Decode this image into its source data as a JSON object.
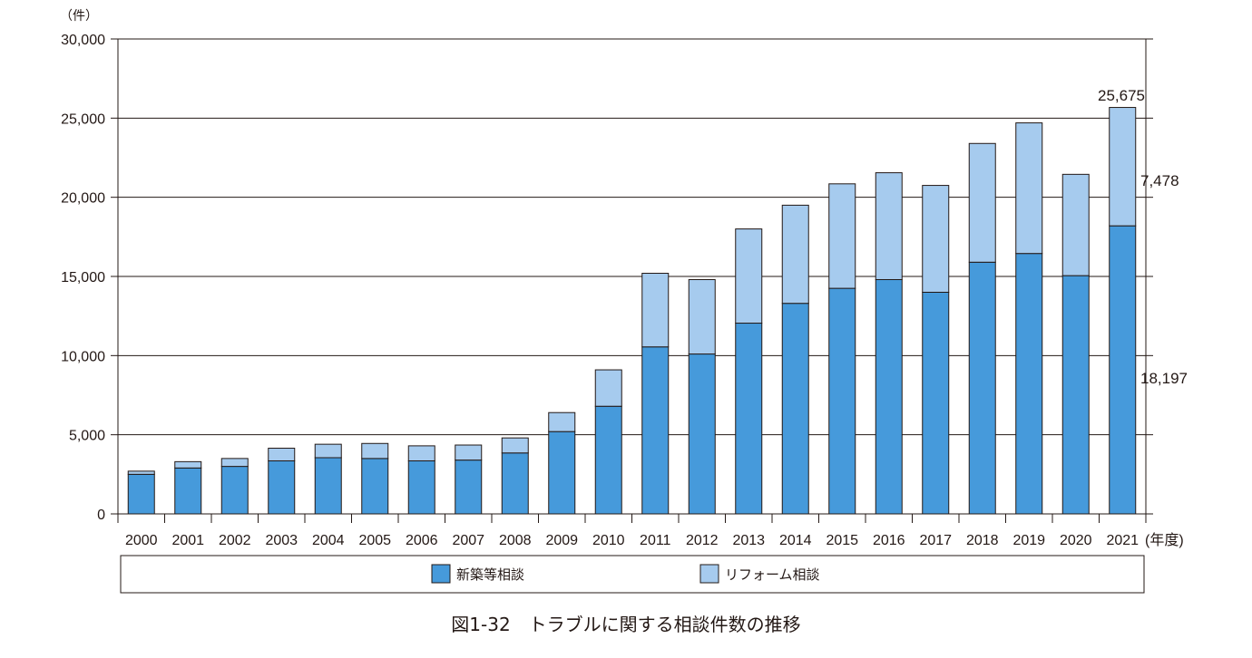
{
  "chart_data": {
    "type": "bar",
    "stacked": true,
    "title": "図1-32　トラブルに関する相談件数の推移",
    "y_unit": "（件）",
    "x_unit": "(年度)",
    "categories": [
      "2000",
      "2001",
      "2002",
      "2003",
      "2004",
      "2005",
      "2006",
      "2007",
      "2008",
      "2009",
      "2010",
      "2011",
      "2012",
      "2013",
      "2014",
      "2015",
      "2016",
      "2017",
      "2018",
      "2019",
      "2020",
      "2021"
    ],
    "series": [
      {
        "name": "新築等相談",
        "color": "#469ADB",
        "values": [
          2500,
          2900,
          3000,
          3350,
          3550,
          3500,
          3350,
          3400,
          3850,
          5200,
          6800,
          10550,
          10100,
          12050,
          13300,
          14250,
          14800,
          14000,
          15900,
          16450,
          15050,
          18197
        ]
      },
      {
        "name": "リフォーム相談",
        "color": "#A6CBEE",
        "values": [
          200,
          400,
          500,
          800,
          850,
          950,
          950,
          950,
          950,
          1200,
          2300,
          4650,
          4700,
          5950,
          6200,
          6600,
          6750,
          6750,
          7500,
          8250,
          6400,
          7478
        ]
      }
    ],
    "yticks": [
      0,
      5000,
      10000,
      15000,
      20000,
      25000,
      30000
    ],
    "ytick_labels": [
      "0",
      "5,000",
      "10,000",
      "15,000",
      "20,000",
      "25,000",
      "30,000"
    ],
    "ylim": [
      0,
      30000
    ],
    "annotations": {
      "total_2021": "25,675",
      "reform_2021": "7,478",
      "new_2021": "18,197"
    },
    "grid": "horizontal",
    "legend_position": "bottom"
  }
}
